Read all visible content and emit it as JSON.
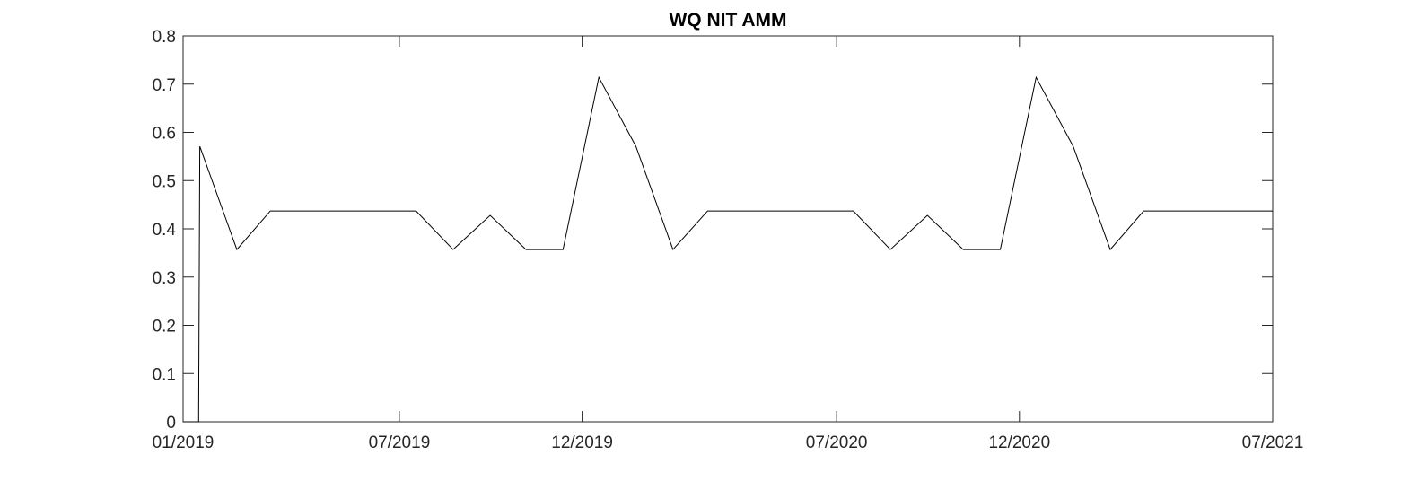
{
  "chart_data": {
    "type": "line",
    "title": "WQ NIT AMM",
    "xlabel": "",
    "ylabel": "",
    "x_axis": {
      "type": "date",
      "range": [
        "2019-01-01",
        "2021-07-01"
      ],
      "ticks": [
        {
          "date": "2019-01-01",
          "label": "01/2019"
        },
        {
          "date": "2019-07-01",
          "label": "07/2019"
        },
        {
          "date": "2019-12-01",
          "label": "12/2019"
        },
        {
          "date": "2020-07-01",
          "label": "07/2020"
        },
        {
          "date": "2020-12-01",
          "label": "12/2020"
        },
        {
          "date": "2021-07-01",
          "label": "07/2021"
        }
      ]
    },
    "y_axis": {
      "range": [
        0,
        0.8
      ],
      "ticks": [
        {
          "value": 0,
          "label": "0"
        },
        {
          "value": 0.1,
          "label": "0.1"
        },
        {
          "value": 0.2,
          "label": "0.2"
        },
        {
          "value": 0.3,
          "label": "0.3"
        },
        {
          "value": 0.4,
          "label": "0.4"
        },
        {
          "value": 0.5,
          "label": "0.5"
        },
        {
          "value": 0.6,
          "label": "0.6"
        },
        {
          "value": 0.7,
          "label": "0.7"
        },
        {
          "value": 0.8,
          "label": "0.8"
        }
      ]
    },
    "grid": false,
    "color": "#000000",
    "series": [
      {
        "x": [
          "2019-01-01",
          "2019-01-14",
          "2019-01-15",
          "2019-02-15",
          "2019-03-15",
          "2019-04-15",
          "2019-05-15",
          "2019-06-15",
          "2019-07-15",
          "2019-08-15",
          "2019-09-15",
          "2019-10-15",
          "2019-11-15",
          "2019-12-15",
          "2020-01-15",
          "2020-02-15",
          "2020-03-15",
          "2020-04-15",
          "2020-05-15",
          "2020-06-15",
          "2020-07-15",
          "2020-08-15",
          "2020-09-15",
          "2020-10-15",
          "2020-11-15",
          "2020-12-15",
          "2021-01-15",
          "2021-02-15",
          "2021-03-15",
          "2021-04-15",
          "2021-05-15",
          "2021-06-15",
          "2021-07-01"
        ],
        "y": [
          0,
          0,
          0.571,
          0.357,
          0.437,
          0.437,
          0.437,
          0.437,
          0.437,
          0.357,
          0.428,
          0.357,
          0.357,
          0.714,
          0.571,
          0.357,
          0.437,
          0.437,
          0.437,
          0.437,
          0.437,
          0.357,
          0.428,
          0.357,
          0.357,
          0.714,
          0.571,
          0.357,
          0.437,
          0.437,
          0.437,
          0.437,
          0.437
        ]
      }
    ]
  }
}
